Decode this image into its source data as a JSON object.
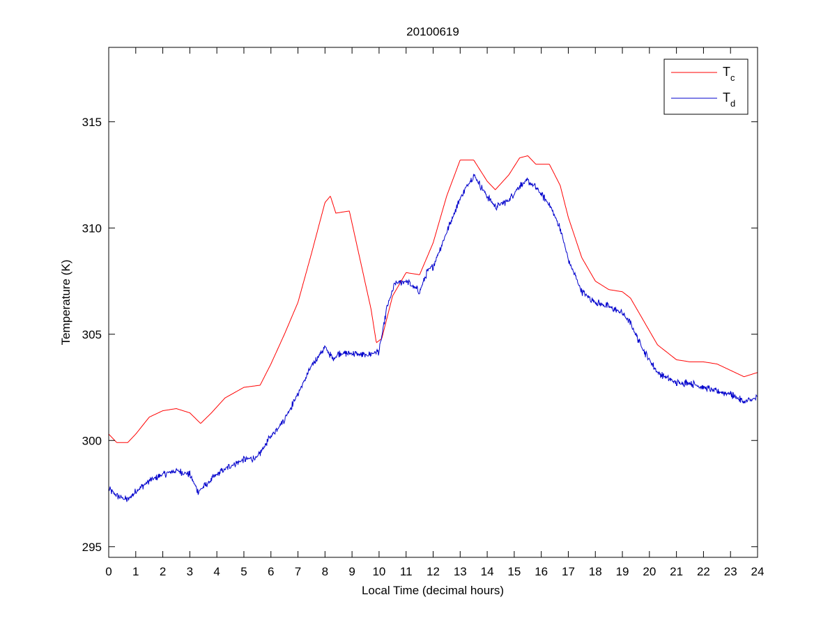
{
  "chart_data": {
    "type": "line",
    "title": "20100619",
    "xlabel": "Local Time (decimal hours)",
    "ylabel": "Temperature (K)",
    "xlim": [
      0,
      24
    ],
    "ylim": [
      294.5,
      318.5
    ],
    "xticks": [
      0,
      1,
      2,
      3,
      4,
      5,
      6,
      7,
      8,
      9,
      10,
      11,
      12,
      13,
      14,
      15,
      16,
      17,
      18,
      19,
      20,
      21,
      22,
      23,
      24
    ],
    "yticks": [
      295,
      300,
      305,
      310,
      315
    ],
    "grid": false,
    "legend_position": "top-right",
    "series": [
      {
        "name": "Tc",
        "label_main": "T",
        "label_sub": "c",
        "color": "#ff0000",
        "noise": 0.0,
        "x": [
          0,
          0.3,
          0.7,
          1,
          1.5,
          2,
          2.5,
          3,
          3.4,
          3.8,
          4.3,
          5,
          5.6,
          6,
          6.5,
          7,
          7.5,
          8,
          8.2,
          8.4,
          8.9,
          9.3,
          9.7,
          9.9,
          10.1,
          10.5,
          11,
          11.5,
          12,
          12.5,
          13,
          13.5,
          14,
          14.3,
          14.8,
          15.2,
          15.5,
          15.8,
          16.3,
          16.7,
          17,
          17.5,
          18,
          18.5,
          19,
          19.3,
          19.8,
          20.3,
          21,
          21.5,
          22,
          22.5,
          23,
          23.5,
          24
        ],
        "y": [
          300.3,
          299.9,
          299.9,
          300.3,
          301.1,
          301.4,
          301.5,
          301.3,
          300.8,
          301.3,
          302.0,
          302.5,
          302.6,
          303.6,
          305.0,
          306.5,
          308.8,
          311.2,
          311.5,
          310.7,
          310.8,
          308.5,
          306.2,
          304.6,
          304.8,
          306.8,
          307.9,
          307.8,
          309.3,
          311.5,
          313.2,
          313.2,
          312.2,
          311.8,
          312.5,
          313.3,
          313.4,
          313.0,
          313.0,
          312.0,
          310.5,
          308.6,
          307.5,
          307.1,
          307.0,
          306.7,
          305.6,
          304.5,
          303.8,
          303.7,
          303.7,
          303.6,
          303.3,
          303.0,
          303.2
        ]
      },
      {
        "name": "Td",
        "label_main": "T",
        "label_sub": "d",
        "color": "#0000cc",
        "noise": 0.12,
        "x": [
          0,
          0.3,
          0.7,
          1,
          1.5,
          2,
          2.5,
          3,
          3.3,
          3.6,
          4,
          4.5,
          5,
          5.5,
          6,
          6.5,
          7,
          7.5,
          8,
          8.3,
          8.5,
          9,
          9.5,
          10,
          10.3,
          10.6,
          11,
          11.5,
          11.8,
          12,
          12.5,
          13,
          13.5,
          14,
          14.3,
          14.8,
          15.2,
          15.5,
          15.8,
          16.3,
          16.7,
          17,
          17.5,
          18,
          18.5,
          19,
          19.3,
          19.8,
          20.3,
          21,
          21.5,
          22,
          22.5,
          23,
          23.5,
          24
        ],
        "y": [
          297.7,
          297.4,
          297.2,
          297.6,
          298.1,
          298.4,
          298.6,
          298.4,
          297.6,
          297.9,
          298.4,
          298.8,
          299.1,
          299.2,
          300.2,
          301.0,
          302.2,
          303.5,
          304.4,
          303.8,
          304.1,
          304.1,
          304.0,
          304.2,
          306.3,
          307.4,
          307.5,
          307.0,
          308.0,
          308.2,
          309.8,
          311.4,
          312.5,
          311.5,
          311.0,
          311.3,
          312.0,
          312.2,
          311.9,
          311.1,
          310.0,
          308.5,
          307.0,
          306.5,
          306.3,
          306.0,
          305.5,
          304.2,
          303.2,
          302.7,
          302.7,
          302.5,
          302.3,
          302.2,
          301.8,
          302.0
        ]
      }
    ]
  }
}
